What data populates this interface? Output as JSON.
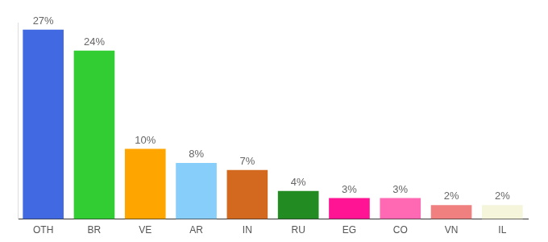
{
  "chart_data": {
    "type": "bar",
    "categories": [
      "OTH",
      "BR",
      "VE",
      "AR",
      "IN",
      "RU",
      "EG",
      "CO",
      "VN",
      "IL"
    ],
    "values": [
      27,
      24,
      10,
      8,
      7,
      4,
      3,
      3,
      2,
      2
    ],
    "value_labels": [
      "27%",
      "24%",
      "10%",
      "8%",
      "7%",
      "4%",
      "3%",
      "3%",
      "2%",
      "2%"
    ],
    "colors": [
      "#4169e1",
      "#32cd32",
      "#ffa500",
      "#87cefa",
      "#d2691e",
      "#228b22",
      "#ff1493",
      "#ff69b4",
      "#f08080",
      "#f5f5dc"
    ],
    "ylim": [
      0,
      28
    ],
    "grid": false,
    "data_labels": true,
    "tick_labels": "x"
  }
}
